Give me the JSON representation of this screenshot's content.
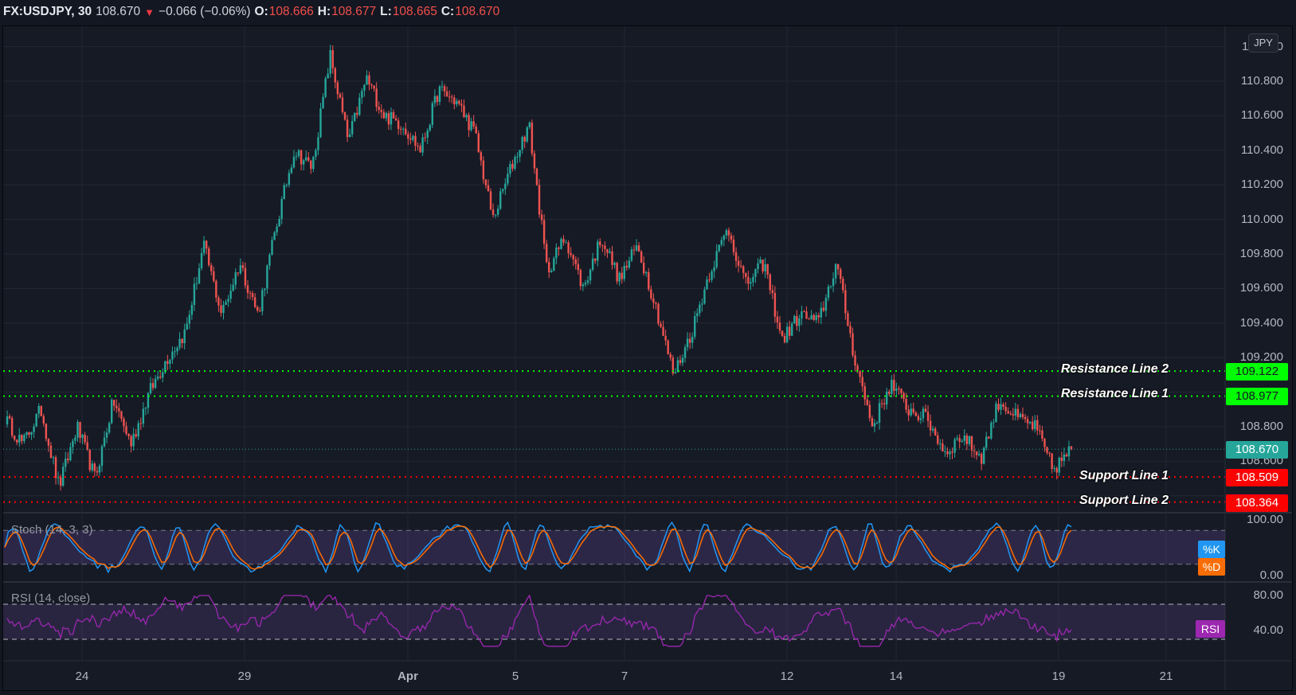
{
  "header": {
    "symbol": "FX:USDJPY, 30",
    "last_price": "108.670",
    "direction_icon": "triangle-down",
    "change": "−0.066 (−0.06%)",
    "open_label": "O:",
    "open": "108.666",
    "high_label": "H:",
    "high": "108.677",
    "low_label": "L:",
    "low": "108.665",
    "close_label": "C:",
    "close": "108.670"
  },
  "colors": {
    "background": "#161a25",
    "grid": "#232733",
    "up": "#26a69a",
    "down": "#ef5350",
    "resistance": "#00ff00",
    "support": "#ff0000",
    "last_price": "#26a69a",
    "stoch_k": "#2196f3",
    "stoch_d": "#ff6d00",
    "rsi": "#9c27b0"
  },
  "price_axis": {
    "currency": "JPY",
    "labels": [
      "110.800",
      "110.600",
      "110.400",
      "110.200",
      "110.000",
      "109.800",
      "109.600",
      "109.400",
      "109.200",
      "108.800",
      "108.600"
    ]
  },
  "horizontal_lines": {
    "resistance_2": {
      "label": "Resistance Line 2",
      "value": "109.122"
    },
    "resistance_1": {
      "label": "Resistance Line 1",
      "value": "108.977"
    },
    "last_price": {
      "value": "108.670"
    },
    "support_1": {
      "label": "Support Line 1",
      "value": "108.509"
    },
    "support_2": {
      "label": "Support Line 2",
      "value": "108.364"
    }
  },
  "time_axis": {
    "labels": [
      "24",
      "29",
      "Apr",
      "5",
      "7",
      "12",
      "14",
      "19",
      "21"
    ]
  },
  "stoch": {
    "title": "Stoch (14, 3, 3)",
    "axis": [
      "100.00",
      "0.00"
    ],
    "k_badge": "%K",
    "d_badge": "%D",
    "bands": [
      80,
      20
    ]
  },
  "rsi": {
    "title": "RSI (14, close)",
    "axis": [
      "80.00",
      "40.00"
    ],
    "badge": "RSI",
    "bands": [
      70,
      30
    ]
  },
  "chart_data": {
    "type": "candlestick",
    "title": "FX:USDJPY, 30",
    "xlabel": "",
    "ylabel": "JPY",
    "ylim": [
      108.3,
      111.0
    ],
    "x_ticks": [
      "24",
      "29",
      "Apr",
      "5",
      "7",
      "12",
      "14",
      "19",
      "21"
    ],
    "price_path": [
      {
        "x": "Mar 23",
        "price": 108.85
      },
      {
        "x": "Mar 23",
        "price": 108.7
      },
      {
        "x": "Mar 23",
        "price": 108.9
      },
      {
        "x": "Mar 24",
        "price": 108.45
      },
      {
        "x": "Mar 24",
        "price": 108.8
      },
      {
        "x": "Mar 24",
        "price": 108.5
      },
      {
        "x": "Mar 25",
        "price": 108.95
      },
      {
        "x": "Mar 25",
        "price": 108.7
      },
      {
        "x": "Mar 26",
        "price": 109.0
      },
      {
        "x": "Mar 26",
        "price": 109.2
      },
      {
        "x": "Mar 26",
        "price": 109.35
      },
      {
        "x": "Mar 28",
        "price": 109.85
      },
      {
        "x": "Mar 28",
        "price": 109.45
      },
      {
        "x": "Mar 29",
        "price": 109.75
      },
      {
        "x": "Mar 29",
        "price": 109.45
      },
      {
        "x": "Mar 30",
        "price": 109.95
      },
      {
        "x": "Mar 31",
        "price": 110.4
      },
      {
        "x": "Mar 31",
        "price": 110.3
      },
      {
        "x": "Mar 31",
        "price": 110.95
      },
      {
        "x": "Apr 1",
        "price": 110.45
      },
      {
        "x": "Apr 1",
        "price": 110.82
      },
      {
        "x": "Apr 1",
        "price": 110.6
      },
      {
        "x": "Apr 2",
        "price": 110.55
      },
      {
        "x": "Apr 2",
        "price": 110.4
      },
      {
        "x": "Apr 2",
        "price": 110.75
      },
      {
        "x": "Apr 5",
        "price": 110.68
      },
      {
        "x": "Apr 5",
        "price": 110.5
      },
      {
        "x": "Apr 5",
        "price": 110.0
      },
      {
        "x": "Apr 6",
        "price": 110.3
      },
      {
        "x": "Apr 6",
        "price": 110.55
      },
      {
        "x": "Apr 6",
        "price": 109.7
      },
      {
        "x": "Apr 7",
        "price": 109.9
      },
      {
        "x": "Apr 7",
        "price": 109.6
      },
      {
        "x": "Apr 8",
        "price": 109.9
      },
      {
        "x": "Apr 8",
        "price": 109.65
      },
      {
        "x": "Apr 8",
        "price": 109.85
      },
      {
        "x": "Apr 9",
        "price": 109.5
      },
      {
        "x": "Apr 9",
        "price": 109.1
      },
      {
        "x": "Apr 9",
        "price": 109.35
      },
      {
        "x": "Apr 11",
        "price": 109.7
      },
      {
        "x": "Apr 11",
        "price": 109.95
      },
      {
        "x": "Apr 11",
        "price": 109.62
      },
      {
        "x": "Apr 12",
        "price": 109.75
      },
      {
        "x": "Apr 12",
        "price": 109.3
      },
      {
        "x": "Apr 12",
        "price": 109.45
      },
      {
        "x": "Apr 13",
        "price": 109.4
      },
      {
        "x": "Apr 13",
        "price": 109.75
      },
      {
        "x": "Apr 13",
        "price": 109.2
      },
      {
        "x": "Apr 14",
        "price": 108.8
      },
      {
        "x": "Apr 14",
        "price": 109.05
      },
      {
        "x": "Apr 15",
        "price": 108.9
      },
      {
        "x": "Apr 15",
        "price": 108.85
      },
      {
        "x": "Apr 16",
        "price": 108.65
      },
      {
        "x": "Apr 16",
        "price": 108.75
      },
      {
        "x": "Apr 16",
        "price": 108.62
      },
      {
        "x": "Apr 17",
        "price": 108.95
      },
      {
        "x": "Apr 17",
        "price": 108.85
      },
      {
        "x": "Apr 18",
        "price": 108.8
      },
      {
        "x": "Apr 19",
        "price": 108.55
      },
      {
        "x": "Apr 19",
        "price": 108.67
      }
    ],
    "stoch_range": [
      0,
      100
    ],
    "rsi_range": [
      20,
      90
    ],
    "annotations": [
      {
        "label": "Resistance Line 2",
        "value": 109.122
      },
      {
        "label": "Resistance Line 1",
        "value": 108.977
      },
      {
        "label": "Support Line 1",
        "value": 108.509
      },
      {
        "label": "Support Line 2",
        "value": 108.364
      }
    ],
    "grid": true
  }
}
